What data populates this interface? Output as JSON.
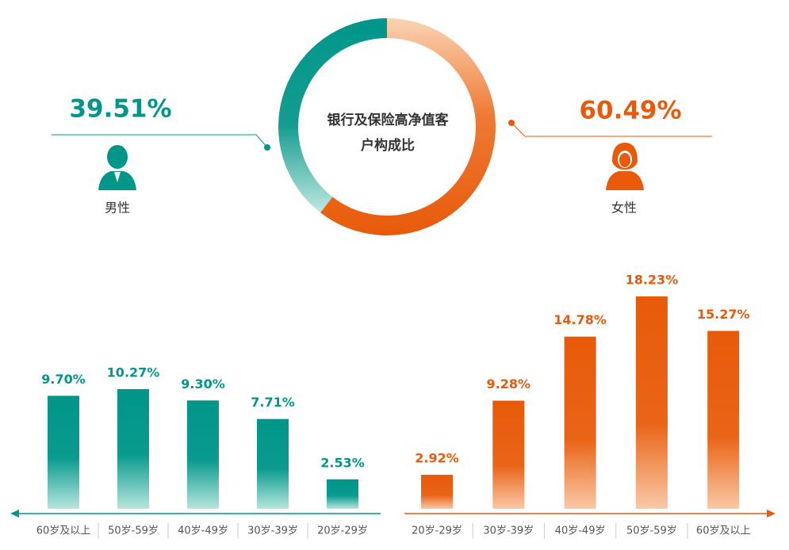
{
  "chart_data": [
    {
      "type": "donut",
      "title": "银行及保险高净值客户构成比",
      "categories": [
        "男性",
        "女性"
      ],
      "values": [
        39.51,
        60.49
      ],
      "value_labels": [
        "39.51%",
        "60.49%"
      ],
      "colors": [
        "#00968a",
        "#e85a0a"
      ]
    },
    {
      "type": "bar",
      "categories": [
        "60岁及以上",
        "50岁-59岁",
        "40岁-49岁",
        "30岁-39岁",
        "20岁-29岁"
      ],
      "values": [
        9.7,
        10.27,
        9.3,
        7.71,
        2.53
      ],
      "value_labels": [
        "9.70%",
        "10.27%",
        "9.30%",
        "7.71%",
        "2.53%"
      ],
      "color": "#00968a"
    },
    {
      "type": "bar",
      "categories": [
        "20岁-29岁",
        "30岁-39岁",
        "40岁-49岁",
        "50岁-59岁",
        "60岁及以上"
      ],
      "values": [
        2.92,
        9.28,
        14.78,
        18.23,
        15.27
      ],
      "value_labels": [
        "2.92%",
        "9.28%",
        "14.78%",
        "18.23%",
        "15.27%"
      ],
      "color": "#e85a0a"
    }
  ]
}
